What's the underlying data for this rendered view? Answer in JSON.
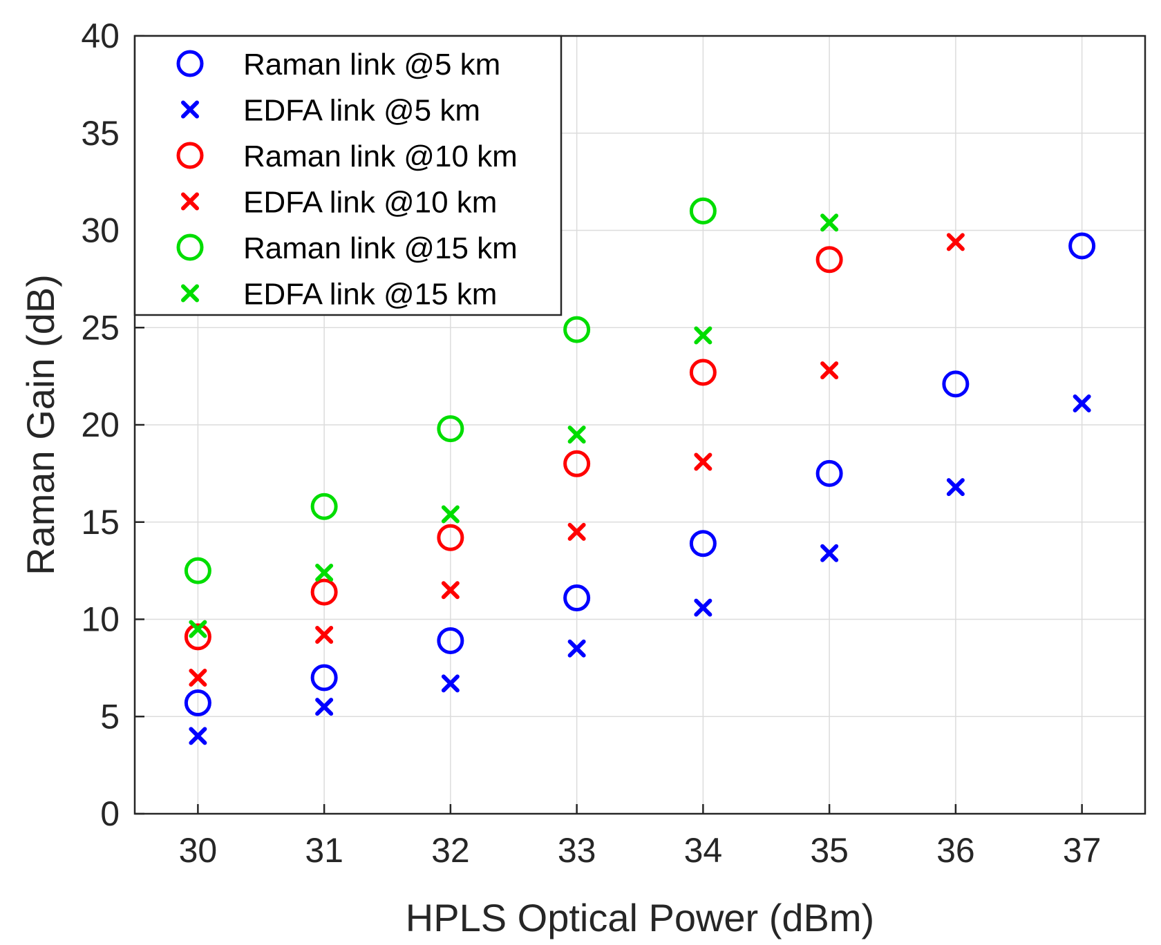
{
  "chart_data": {
    "type": "scatter",
    "title": "",
    "xlabel": "HPLS Optical Power (dBm)",
    "ylabel": "Raman Gain (dB)",
    "xlim": [
      29.5,
      37.5
    ],
    "ylim": [
      0,
      40
    ],
    "xticks": [
      30,
      31,
      32,
      33,
      34,
      35,
      36,
      37
    ],
    "yticks": [
      0,
      5,
      10,
      15,
      20,
      25,
      30,
      35,
      40
    ],
    "grid": true,
    "legend_position": "top-left",
    "series": [
      {
        "name": "Raman link @5 km",
        "marker": "circle",
        "color": "#0000ff",
        "x": [
          30,
          31,
          32,
          33,
          34,
          35,
          36,
          37
        ],
        "y": [
          5.7,
          7.0,
          8.9,
          11.1,
          13.9,
          17.5,
          22.1,
          29.2
        ]
      },
      {
        "name": "EDFA link @5 km",
        "marker": "x",
        "color": "#0000ff",
        "x": [
          30,
          31,
          32,
          33,
          34,
          35,
          36,
          37
        ],
        "y": [
          4.0,
          5.5,
          6.7,
          8.5,
          10.6,
          13.4,
          16.8,
          21.1
        ]
      },
      {
        "name": "Raman link @10 km",
        "marker": "circle",
        "color": "#ff0000",
        "x": [
          30,
          31,
          32,
          33,
          34,
          35
        ],
        "y": [
          9.1,
          11.4,
          14.2,
          18.0,
          22.7,
          28.5
        ]
      },
      {
        "name": "EDFA link @10 km",
        "marker": "x",
        "color": "#ff0000",
        "x": [
          30,
          31,
          32,
          33,
          34,
          35,
          36
        ],
        "y": [
          7.0,
          9.2,
          11.5,
          14.5,
          18.1,
          22.8,
          29.4
        ]
      },
      {
        "name": "Raman link @15 km",
        "marker": "circle",
        "color": "#00dd00",
        "x": [
          30,
          31,
          32,
          33,
          34
        ],
        "y": [
          12.5,
          15.8,
          19.8,
          24.9,
          31.0
        ]
      },
      {
        "name": "EDFA link @15 km",
        "marker": "x",
        "color": "#00dd00",
        "x": [
          30,
          31,
          32,
          33,
          34,
          35
        ],
        "y": [
          9.5,
          12.4,
          15.4,
          19.5,
          24.6,
          30.4
        ]
      }
    ]
  }
}
